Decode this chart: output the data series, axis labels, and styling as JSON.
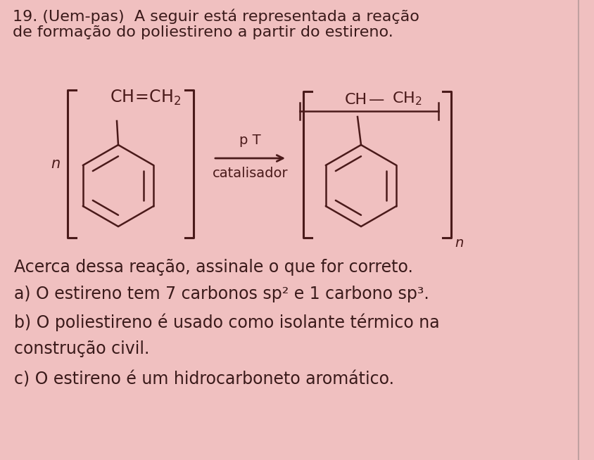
{
  "background_color": "#f0c0c0",
  "text_color": "#3a1a1a",
  "title_line1": "19. (Uem-pas)  A seguir está representada a reação",
  "title_line2": "de formação do poliestireno a partir do estireno.",
  "arrow_label_top": "p T",
  "arrow_label_bottom": "catalisador",
  "n_left": "n",
  "n_right": "n",
  "question_text": "Acerca dessa reação, assinale o que for correto.",
  "option_a": "a) O estireno tem 7 carbonos sp² e 1 carbono sp³.",
  "option_b": "b) O poliestireno é usado como isolante térmico na",
  "option_b2": "construção civil.",
  "option_c": "c) O estireno é um hidrocarboneto aromático.",
  "font_size_title": 16,
  "font_size_body": 17,
  "font_size_chem": 15,
  "lw": 1.8
}
